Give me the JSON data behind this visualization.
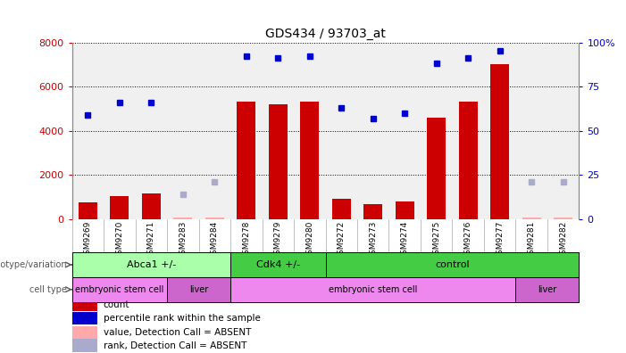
{
  "title": "GDS434 / 93703_at",
  "samples": [
    "GSM9269",
    "GSM9270",
    "GSM9271",
    "GSM9283",
    "GSM9284",
    "GSM9278",
    "GSM9279",
    "GSM9280",
    "GSM9272",
    "GSM9273",
    "GSM9274",
    "GSM9275",
    "GSM9276",
    "GSM9277",
    "GSM9281",
    "GSM9282"
  ],
  "counts": [
    750,
    1050,
    1150,
    75,
    75,
    5300,
    5200,
    5300,
    900,
    650,
    800,
    4600,
    5300,
    7000,
    75,
    75
  ],
  "counts_absent": [
    false,
    false,
    false,
    true,
    true,
    false,
    false,
    false,
    false,
    false,
    false,
    false,
    false,
    false,
    true,
    true
  ],
  "percentile_ranks": [
    59,
    66,
    66,
    null,
    null,
    92,
    91,
    92,
    63,
    57,
    60,
    88,
    91,
    95,
    null,
    null
  ],
  "absent_rank_values": [
    null,
    null,
    null,
    14,
    21,
    null,
    null,
    null,
    null,
    null,
    null,
    null,
    null,
    null,
    21,
    21
  ],
  "ylim_left": [
    0,
    8000
  ],
  "ylim_right": [
    0,
    100
  ],
  "yticks_left": [
    0,
    2000,
    4000,
    6000,
    8000
  ],
  "yticks_right": [
    0,
    25,
    50,
    75,
    100
  ],
  "bar_color": "#cc0000",
  "dot_color": "#0000cc",
  "absent_bar_color": "#ffaaaa",
  "absent_dot_color": "#aaaacc",
  "background_color": "#ffffff",
  "plot_bg": "#f0f0f0",
  "xtick_bg": "#d0d0d0",
  "genotype_groups": [
    {
      "label": "Abca1 +/-",
      "start": 0,
      "end": 5,
      "color": "#aaffaa"
    },
    {
      "label": "Cdk4 +/-",
      "start": 5,
      "end": 8,
      "color": "#44cc44"
    },
    {
      "label": "control",
      "start": 8,
      "end": 16,
      "color": "#44cc44"
    }
  ],
  "cell_type_groups": [
    {
      "label": "embryonic stem cell",
      "start": 0,
      "end": 3,
      "color": "#ee88ee"
    },
    {
      "label": "liver",
      "start": 3,
      "end": 5,
      "color": "#cc66cc"
    },
    {
      "label": "embryonic stem cell",
      "start": 5,
      "end": 14,
      "color": "#ee88ee"
    },
    {
      "label": "liver",
      "start": 14,
      "end": 16,
      "color": "#cc66cc"
    }
  ],
  "legend_items": [
    {
      "label": "count",
      "color": "#cc0000"
    },
    {
      "label": "percentile rank within the sample",
      "color": "#0000cc"
    },
    {
      "label": "value, Detection Call = ABSENT",
      "color": "#ffaaaa"
    },
    {
      "label": "rank, Detection Call = ABSENT",
      "color": "#aaaacc"
    }
  ]
}
